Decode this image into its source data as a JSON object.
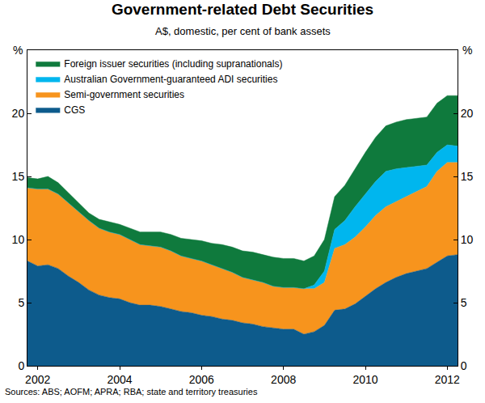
{
  "chart_data": {
    "type": "area",
    "title": "Government-related Debt Securities",
    "subtitle": "A$, domestic, per cent of bank assets",
    "ylabel": "%",
    "source": "Sources: ABS; AOFM; APRA; RBA; state and territory treasuries",
    "stacked": true,
    "grid": false,
    "legend": "top left",
    "categories": [
      null,
      "2002",
      null,
      null,
      null,
      null,
      null,
      null,
      null,
      "2004",
      null,
      null,
      null,
      null,
      null,
      null,
      null,
      "2006",
      null,
      null,
      null,
      null,
      null,
      null,
      null,
      "2008",
      null,
      null,
      null,
      null,
      null,
      null,
      null,
      "2010",
      null,
      null,
      null,
      null,
      null,
      null,
      null,
      "2012",
      null
    ],
    "ylim": [
      0,
      25
    ],
    "yticks": [
      0,
      5,
      10,
      15,
      20
    ],
    "series": [
      {
        "name": "CGS",
        "color": "#0d5b8c",
        "values": [
          8.3,
          7.9,
          8.0,
          7.7,
          7.1,
          6.6,
          6.0,
          5.6,
          5.4,
          5.3,
          5.0,
          4.8,
          4.8,
          4.7,
          4.5,
          4.3,
          4.2,
          4.0,
          3.9,
          3.7,
          3.6,
          3.4,
          3.3,
          3.1,
          3.0,
          2.9,
          2.9,
          2.5,
          2.7,
          3.2,
          4.4,
          4.5,
          4.9,
          5.5,
          6.1,
          6.6,
          7.0,
          7.3,
          7.5,
          7.7,
          8.2,
          8.7,
          8.8
        ]
      },
      {
        "name": "Semi-government securities",
        "color": "#f7941d",
        "values": [
          5.8,
          6.1,
          6.0,
          5.9,
          5.8,
          5.6,
          5.5,
          5.3,
          5.2,
          5.1,
          5.0,
          4.8,
          4.7,
          4.7,
          4.6,
          4.4,
          4.3,
          4.3,
          4.1,
          4.0,
          3.8,
          3.6,
          3.5,
          3.5,
          3.3,
          3.3,
          3.3,
          3.6,
          3.4,
          3.4,
          4.9,
          5.1,
          5.3,
          5.5,
          5.8,
          6.0,
          6.0,
          6.1,
          6.3,
          6.5,
          7.2,
          7.4,
          7.3
        ]
      },
      {
        "name": "Australian Government-guaranteed ADI securities",
        "color": "#00b6ee",
        "values": [
          0,
          0,
          0,
          0,
          0,
          0,
          0,
          0,
          0,
          0,
          0,
          0,
          0,
          0,
          0,
          0,
          0,
          0,
          0,
          0,
          0,
          0,
          0,
          0,
          0,
          0,
          0,
          0,
          0.3,
          0.9,
          1.5,
          1.9,
          2.4,
          2.6,
          2.7,
          2.8,
          2.6,
          2.3,
          2.0,
          1.7,
          1.5,
          1.4,
          1.3
        ]
      },
      {
        "name": "Foreign issuer securities (including supranationals)",
        "color": "#0f7a3d",
        "values": [
          0.8,
          0.8,
          1.0,
          0.9,
          0.8,
          0.7,
          0.6,
          0.7,
          0.8,
          0.8,
          0.9,
          1.0,
          1.1,
          1.2,
          1.3,
          1.4,
          1.5,
          1.6,
          1.7,
          1.9,
          2.0,
          2.1,
          2.2,
          2.2,
          2.3,
          2.3,
          2.3,
          2.2,
          2.3,
          2.5,
          2.6,
          2.8,
          3.0,
          3.3,
          3.5,
          3.6,
          3.7,
          3.8,
          3.8,
          3.8,
          3.9,
          3.9,
          4.0
        ]
      }
    ]
  }
}
